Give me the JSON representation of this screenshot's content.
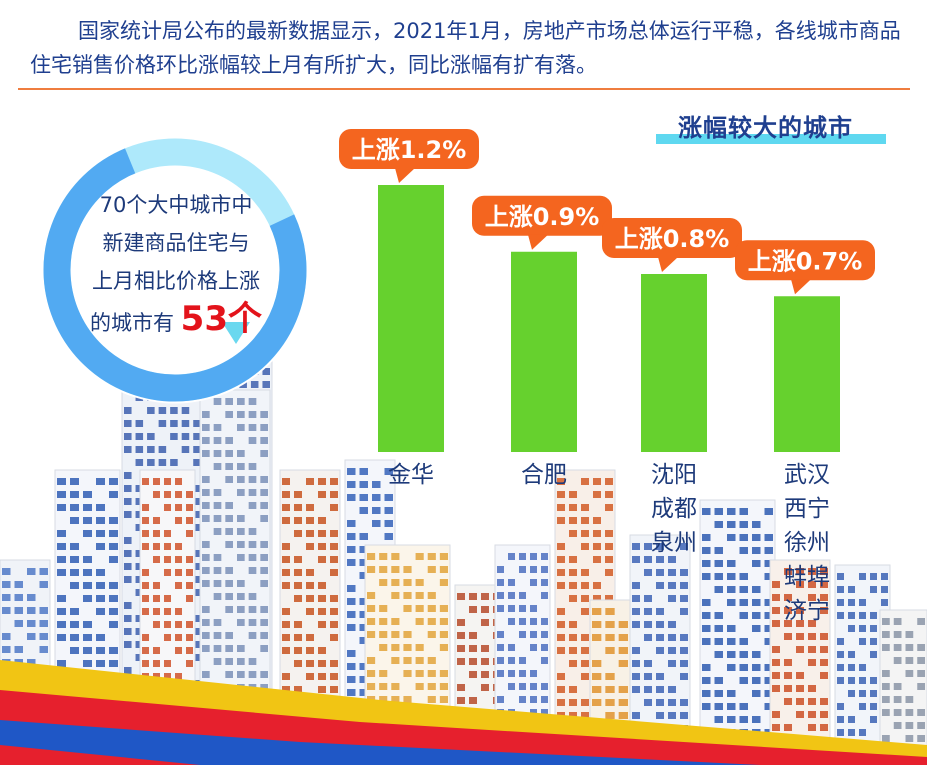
{
  "intro": "国家统计局公布的最新数据显示，2021年1月，房地产市场总体运行平稳，各线城市商品住宅销售价格环比涨幅较上月有所扩大，同比涨幅有扩有落。",
  "section_title": "涨幅较大的城市",
  "summary": {
    "lines": [
      "70个大中城市中",
      "新建商品住宅与",
      "上月相比价格上涨"
    ],
    "prefix": "的城市有",
    "count": "53个",
    "rising": 53,
    "total": 70
  },
  "colors": {
    "bar": "#66d12e",
    "label": "#f4651f",
    "ring_main": "#52aaf2",
    "ring_light": "#aee9fb",
    "text": "#1d3a7a"
  },
  "chart_data": {
    "type": "bar",
    "categories": [
      [
        "金华"
      ],
      [
        "合肥"
      ],
      [
        "沈阳",
        "成都",
        "泉州"
      ],
      [
        "武汉",
        "西宁",
        "徐州",
        "蚌埠",
        "济宁"
      ]
    ],
    "values": [
      1.2,
      0.9,
      0.8,
      0.7
    ],
    "data_labels": [
      "上涨1.2%",
      "上涨0.9%",
      "上涨0.8%",
      "上涨0.7%"
    ],
    "unit": "%",
    "ylim": [
      0,
      1.2
    ],
    "grid": false
  }
}
